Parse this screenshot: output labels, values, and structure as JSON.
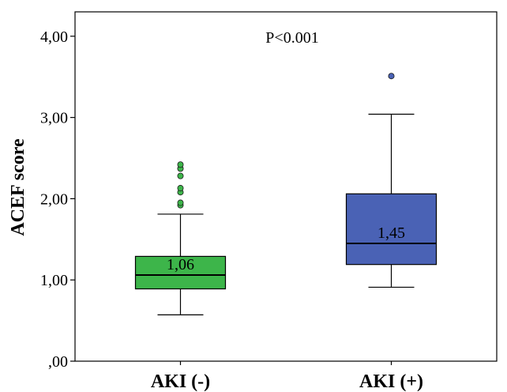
{
  "chart_data": {
    "type": "box",
    "annotation": "P<0.001",
    "ylabel": "ACEF score",
    "ylim": [
      0,
      4.3
    ],
    "yticks": [
      {
        "value": 0,
        "label": ",00"
      },
      {
        "value": 1,
        "label": "1,00"
      },
      {
        "value": 2,
        "label": "2,00"
      },
      {
        "value": 3,
        "label": "3,00"
      },
      {
        "value": 4,
        "label": "4,00"
      }
    ],
    "categories": [
      "AKI (-)",
      "AKI (+)"
    ],
    "boxes": [
      {
        "category": "AKI (-)",
        "color": "#3db54a",
        "whisker_low": 0.57,
        "q1": 0.89,
        "median": 1.06,
        "q3": 1.29,
        "whisker_high": 1.81,
        "median_label": "1,06",
        "outliers": [
          1.92,
          1.95,
          2.08,
          2.13,
          2.28,
          2.37,
          2.42
        ]
      },
      {
        "category": "AKI (+)",
        "color": "#4a62b5",
        "whisker_low": 0.91,
        "q1": 1.19,
        "median": 1.45,
        "q3": 2.06,
        "whisker_high": 3.04,
        "median_label": "1,45",
        "outliers": [
          3.51
        ]
      }
    ]
  }
}
